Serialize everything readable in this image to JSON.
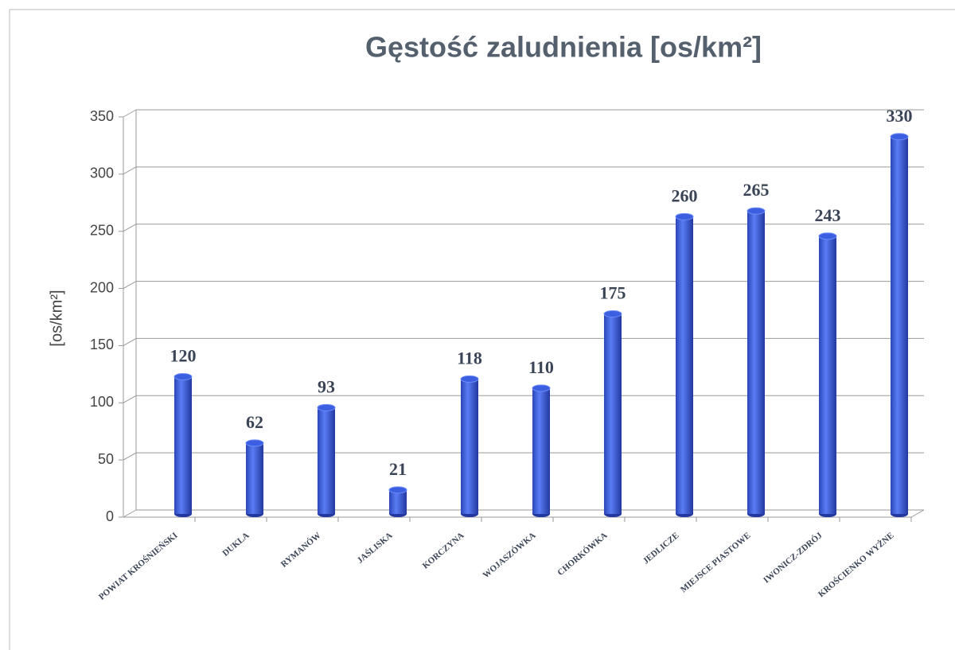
{
  "chart_data": {
    "type": "bar3d",
    "title": "Gęstość zaludnienia [os/km²]",
    "ylabel": "[os/km²]",
    "categories": [
      "POWIAT KROŚNIEŃSKI",
      "DUKLA",
      "RYMANÓW",
      "JAŚLISKA",
      "KORCZYNA",
      "WOJASZÓWKA",
      "CHORKÓWKA",
      "JEDLICZE",
      "MIEJSCE PIASTOWE",
      "IWONICZ-ZDRÓJ",
      "KROŚCIENKO WYŻNE"
    ],
    "values": [
      120,
      62,
      93,
      21,
      118,
      110,
      175,
      260,
      265,
      243,
      330
    ],
    "color": "#3b5fe0",
    "ylim": [
      0,
      350
    ],
    "yticks": [
      0,
      50,
      100,
      150,
      200,
      250,
      300,
      350
    ],
    "grid": true
  }
}
